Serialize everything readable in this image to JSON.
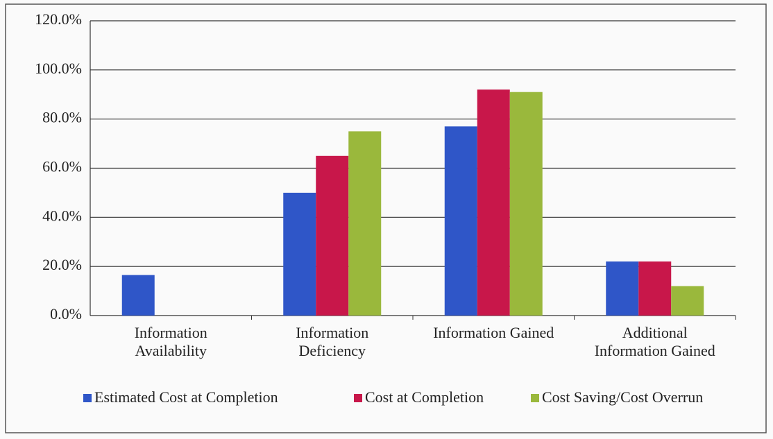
{
  "chart_data": {
    "type": "bar",
    "categories": [
      "Information Availability",
      "Information Deficiency",
      "Information Gained",
      "Additional Information Gained"
    ],
    "series": [
      {
        "name": "Estimated  Cost at Completion",
        "color": "#2f56c8",
        "values": [
          16.5,
          50,
          77,
          22
        ]
      },
      {
        "name": "Cost at Completion",
        "color": "#c8174a",
        "values": [
          0,
          65,
          92,
          22
        ]
      },
      {
        "name": "Cost Saving/Cost Overrun",
        "color": "#9ab83c",
        "values": [
          0,
          75,
          91,
          12
        ]
      }
    ],
    "ylim": [
      0,
      120
    ],
    "yticks": [
      {
        "value": 0,
        "label": "0.0%"
      },
      {
        "value": 20,
        "label": "20.0%"
      },
      {
        "value": 40,
        "label": "40.0%"
      },
      {
        "value": 60,
        "label": "60.0%"
      },
      {
        "value": 80,
        "label": "80.0%"
      },
      {
        "value": 100,
        "label": "100.0%"
      },
      {
        "value": 120,
        "label": "120.0%"
      }
    ],
    "grid": true,
    "legend": "bottom"
  }
}
